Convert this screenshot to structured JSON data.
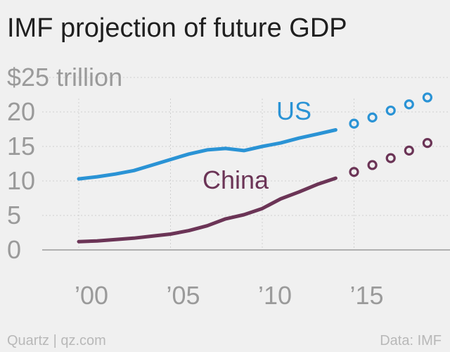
{
  "chart_data": {
    "type": "line",
    "title": "IMF projection of future GDP",
    "y_unit_label": "$25 trillion",
    "y_ticks": [
      {
        "value": 25,
        "label": "$25 trillion"
      },
      {
        "value": 20,
        "label": "20"
      },
      {
        "value": 15,
        "label": "15"
      },
      {
        "value": 10,
        "label": "10"
      },
      {
        "value": 5,
        "label": "5"
      },
      {
        "value": 0,
        "label": "0"
      }
    ],
    "x_ticks": [
      {
        "value": 2000,
        "label": "’00"
      },
      {
        "value": 2005,
        "label": "’05"
      },
      {
        "value": 2010,
        "label": "’10"
      },
      {
        "value": 2015,
        "label": "’15"
      }
    ],
    "xlim": [
      1998,
      2019.5
    ],
    "ylim": [
      0,
      25
    ],
    "grid": "horizontal-dashed",
    "series": [
      {
        "name": "US",
        "color": "#2a93d5",
        "actual": {
          "x": [
            2000,
            2001,
            2002,
            2003,
            2004,
            2005,
            2006,
            2007,
            2008,
            2009,
            2010,
            2011,
            2012,
            2013,
            2014
          ],
          "y": [
            10.3,
            10.6,
            11.0,
            11.5,
            12.3,
            13.1,
            13.9,
            14.5,
            14.7,
            14.4,
            15.0,
            15.5,
            16.2,
            16.8,
            17.4
          ]
        },
        "projected": {
          "x": [
            2015,
            2016,
            2017,
            2018,
            2019
          ],
          "y": [
            18.3,
            19.2,
            20.2,
            21.1,
            22.1
          ]
        }
      },
      {
        "name": "China",
        "color": "#6b3456",
        "actual": {
          "x": [
            2000,
            2001,
            2002,
            2003,
            2004,
            2005,
            2006,
            2007,
            2008,
            2009,
            2010,
            2011,
            2012,
            2013,
            2014
          ],
          "y": [
            1.2,
            1.3,
            1.5,
            1.7,
            2.0,
            2.3,
            2.8,
            3.5,
            4.5,
            5.1,
            6.0,
            7.4,
            8.4,
            9.5,
            10.4
          ]
        },
        "projected": {
          "x": [
            2015,
            2016,
            2017,
            2018,
            2019
          ],
          "y": [
            11.3,
            12.3,
            13.3,
            14.4,
            15.5
          ]
        }
      }
    ]
  },
  "footer": {
    "source_left": "Quartz | qz.com",
    "source_right": "Data: IMF"
  }
}
